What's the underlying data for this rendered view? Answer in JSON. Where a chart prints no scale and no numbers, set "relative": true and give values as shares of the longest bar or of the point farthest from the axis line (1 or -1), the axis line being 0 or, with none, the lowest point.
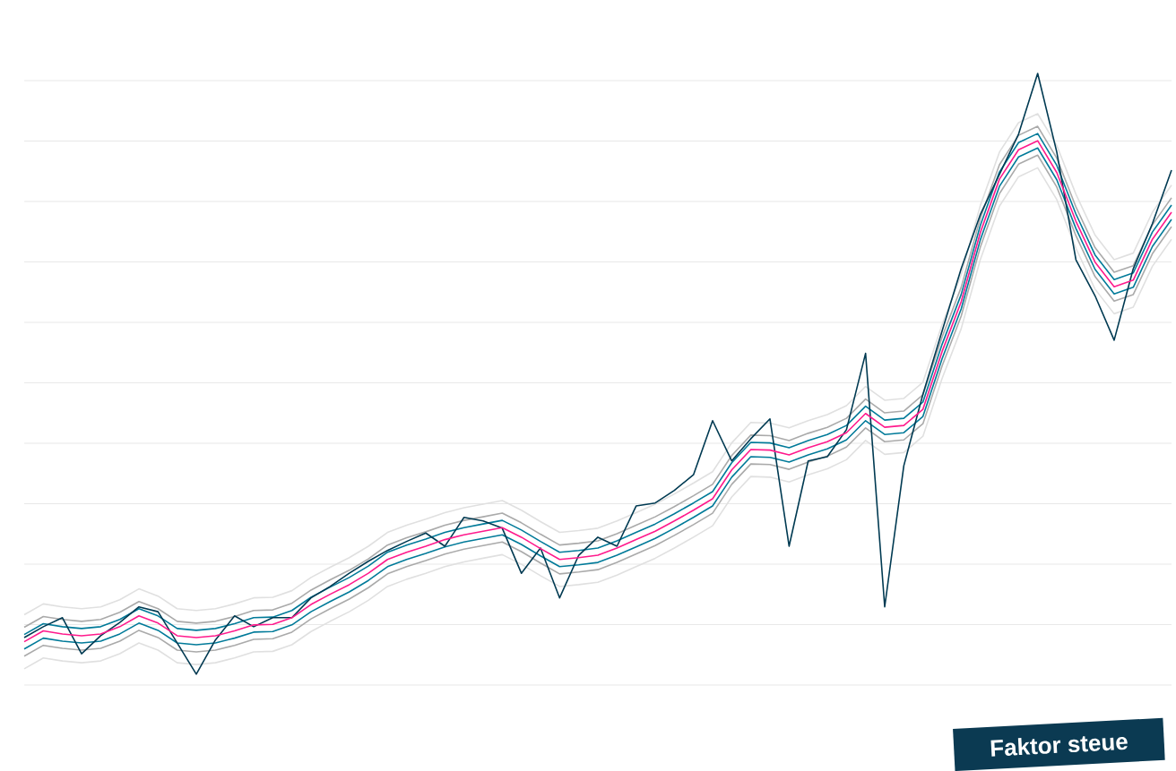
{
  "chart_data": {
    "type": "line",
    "relative": true,
    "grid": "y",
    "categories": [
      null,
      null,
      null,
      null,
      null,
      null,
      null,
      null,
      null,
      null,
      null,
      null,
      null,
      null,
      null,
      null,
      null,
      null,
      null,
      null,
      null,
      null,
      null,
      null,
      null,
      null,
      null,
      null,
      null,
      null,
      null,
      null,
      null,
      null,
      null,
      null,
      null,
      null,
      null,
      null,
      null,
      null,
      null,
      null,
      null,
      null,
      null,
      null,
      null,
      null,
      null,
      null,
      null,
      null,
      null,
      null,
      null,
      null,
      null,
      null,
      null
    ],
    "annotations": [
      "Faktor steue"
    ],
    "series": [
      {
        "color": "#e0e0e0",
        "values": [
          0.099,
          0.117,
          0.112,
          0.109,
          0.112,
          0.124,
          0.142,
          0.13,
          0.109,
          0.106,
          0.109,
          0.117,
          0.127,
          0.128,
          0.139,
          0.161,
          0.178,
          0.194,
          0.213,
          0.236,
          0.248,
          0.258,
          0.269,
          0.277,
          0.283,
          0.289,
          0.273,
          0.254,
          0.236,
          0.239,
          0.243,
          0.255,
          0.269,
          0.283,
          0.3,
          0.318,
          0.337,
          0.385,
          0.419,
          0.418,
          0.41,
          0.422,
          0.432,
          0.447,
          0.479,
          0.456,
          0.459,
          0.486,
          0.582,
          0.665,
          0.78,
          0.869,
          0.918,
          0.933,
          0.88,
          0.799,
          0.731,
          0.69,
          0.701,
          0.769,
          0.814
        ]
      },
      {
        "color": "#e0e0e0",
        "values": [
          0.009,
          0.027,
          0.022,
          0.019,
          0.022,
          0.034,
          0.052,
          0.04,
          0.019,
          0.016,
          0.019,
          0.027,
          0.037,
          0.038,
          0.049,
          0.071,
          0.088,
          0.104,
          0.123,
          0.146,
          0.158,
          0.168,
          0.179,
          0.187,
          0.193,
          0.199,
          0.183,
          0.164,
          0.146,
          0.149,
          0.153,
          0.165,
          0.179,
          0.193,
          0.21,
          0.228,
          0.247,
          0.295,
          0.329,
          0.328,
          0.32,
          0.332,
          0.342,
          0.357,
          0.389,
          0.366,
          0.369,
          0.396,
          0.492,
          0.575,
          0.69,
          0.779,
          0.828,
          0.843,
          0.79,
          0.709,
          0.641,
          0.6,
          0.611,
          0.679,
          0.724
        ]
      },
      {
        "color": "#aaaaaa",
        "values": [
          0.078,
          0.096,
          0.091,
          0.088,
          0.091,
          0.103,
          0.121,
          0.109,
          0.088,
          0.085,
          0.088,
          0.096,
          0.106,
          0.107,
          0.118,
          0.14,
          0.157,
          0.173,
          0.192,
          0.215,
          0.227,
          0.237,
          0.248,
          0.256,
          0.262,
          0.268,
          0.252,
          0.233,
          0.215,
          0.218,
          0.222,
          0.234,
          0.248,
          0.262,
          0.279,
          0.297,
          0.316,
          0.364,
          0.398,
          0.397,
          0.389,
          0.401,
          0.411,
          0.426,
          0.458,
          0.435,
          0.438,
          0.465,
          0.561,
          0.644,
          0.759,
          0.848,
          0.897,
          0.912,
          0.859,
          0.778,
          0.71,
          0.669,
          0.68,
          0.748,
          0.793
        ]
      },
      {
        "color": "#aaaaaa",
        "values": [
          0.03,
          0.048,
          0.043,
          0.04,
          0.043,
          0.055,
          0.073,
          0.061,
          0.04,
          0.037,
          0.04,
          0.048,
          0.058,
          0.059,
          0.07,
          0.092,
          0.109,
          0.125,
          0.144,
          0.167,
          0.179,
          0.189,
          0.2,
          0.208,
          0.214,
          0.22,
          0.204,
          0.185,
          0.167,
          0.17,
          0.174,
          0.186,
          0.2,
          0.214,
          0.231,
          0.249,
          0.268,
          0.316,
          0.35,
          0.349,
          0.341,
          0.353,
          0.363,
          0.378,
          0.41,
          0.387,
          0.39,
          0.417,
          0.513,
          0.596,
          0.711,
          0.8,
          0.849,
          0.864,
          0.811,
          0.73,
          0.662,
          0.621,
          0.632,
          0.7,
          0.745
        ]
      },
      {
        "color": "#007a99",
        "values": [
          0.066,
          0.084,
          0.079,
          0.076,
          0.079,
          0.091,
          0.109,
          0.097,
          0.076,
          0.073,
          0.076,
          0.084,
          0.094,
          0.095,
          0.106,
          0.128,
          0.145,
          0.161,
          0.18,
          0.203,
          0.215,
          0.225,
          0.236,
          0.244,
          0.25,
          0.256,
          0.24,
          0.221,
          0.203,
          0.206,
          0.21,
          0.222,
          0.236,
          0.25,
          0.267,
          0.285,
          0.304,
          0.352,
          0.386,
          0.385,
          0.377,
          0.389,
          0.399,
          0.414,
          0.446,
          0.423,
          0.426,
          0.453,
          0.549,
          0.632,
          0.747,
          0.836,
          0.885,
          0.9,
          0.847,
          0.766,
          0.698,
          0.657,
          0.668,
          0.736,
          0.781
        ]
      },
      {
        "color": "#007a99",
        "values": [
          0.042,
          0.06,
          0.055,
          0.052,
          0.055,
          0.067,
          0.085,
          0.073,
          0.052,
          0.049,
          0.052,
          0.06,
          0.07,
          0.071,
          0.082,
          0.104,
          0.121,
          0.137,
          0.156,
          0.179,
          0.191,
          0.201,
          0.212,
          0.22,
          0.226,
          0.232,
          0.216,
          0.197,
          0.179,
          0.182,
          0.186,
          0.198,
          0.212,
          0.226,
          0.243,
          0.261,
          0.28,
          0.328,
          0.362,
          0.361,
          0.353,
          0.365,
          0.375,
          0.39,
          0.422,
          0.399,
          0.402,
          0.429,
          0.525,
          0.608,
          0.723,
          0.812,
          0.861,
          0.876,
          0.823,
          0.742,
          0.674,
          0.633,
          0.644,
          0.712,
          0.757
        ]
      },
      {
        "color": "#003a52",
        "values": [
          0.061,
          0.079,
          0.094,
          0.034,
          0.064,
          0.086,
          0.112,
          0.104,
          0.052,
          0,
          0.057,
          0.097,
          0.079,
          0.094,
          0.094,
          0.127,
          0.146,
          0.168,
          0.188,
          0.206,
          0.221,
          0.235,
          0.213,
          0.261,
          0.255,
          0.243,
          0.168,
          0.21,
          0.127,
          0.198,
          0.228,
          0.213,
          0.28,
          0.285,
          0.306,
          0.332,
          0.422,
          0.355,
          0.392,
          0.425,
          0.213,
          0.355,
          0.362,
          0.407,
          0.534,
          0.112,
          0.347,
          0.466,
          0.571,
          0.675,
          0.765,
          0.832,
          0.899,
          1,
          0.869,
          0.69,
          0.63,
          0.556,
          0.675,
          0.75,
          0.839
        ]
      },
      {
        "color": "#ff1a8c",
        "values": [
          0.054,
          0.072,
          0.067,
          0.064,
          0.067,
          0.079,
          0.097,
          0.085,
          0.064,
          0.061,
          0.064,
          0.072,
          0.082,
          0.083,
          0.094,
          0.116,
          0.133,
          0.149,
          0.168,
          0.191,
          0.203,
          0.213,
          0.224,
          0.232,
          0.238,
          0.244,
          0.228,
          0.209,
          0.191,
          0.194,
          0.198,
          0.21,
          0.224,
          0.238,
          0.255,
          0.273,
          0.292,
          0.34,
          0.374,
          0.373,
          0.365,
          0.377,
          0.387,
          0.402,
          0.434,
          0.411,
          0.414,
          0.441,
          0.537,
          0.62,
          0.735,
          0.824,
          0.873,
          0.888,
          0.835,
          0.754,
          0.686,
          0.645,
          0.656,
          0.724,
          0.769
        ]
      }
    ]
  }
}
